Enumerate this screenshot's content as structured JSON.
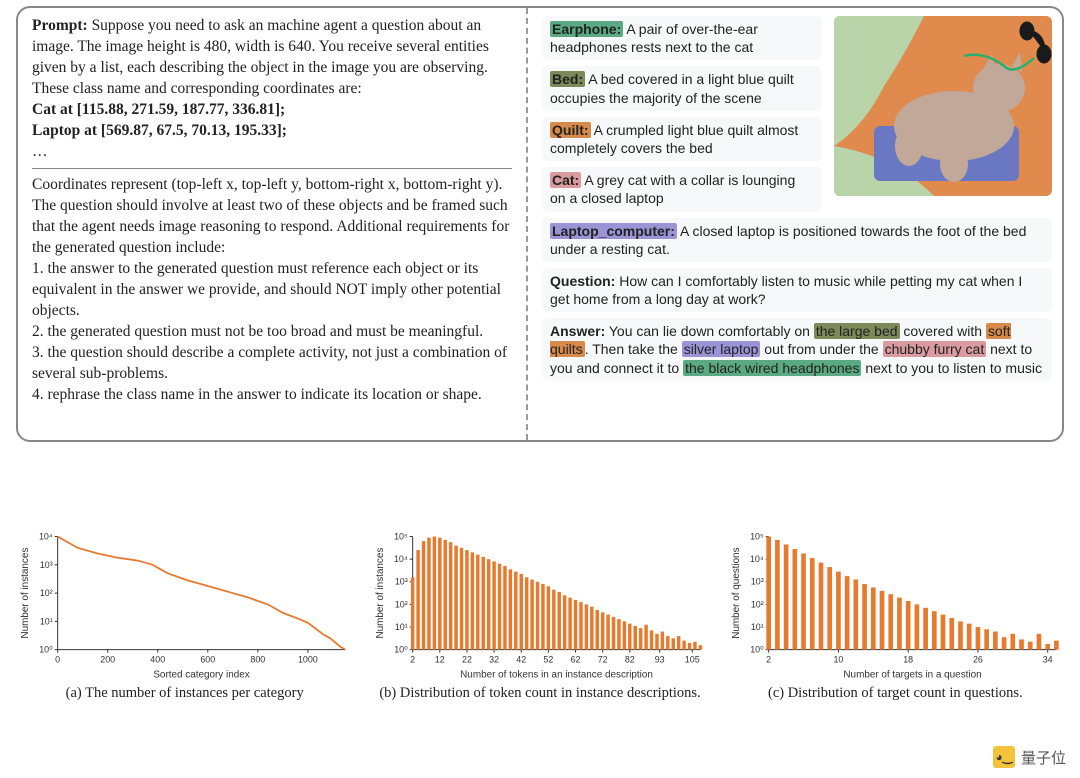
{
  "prompt": {
    "label": "Prompt:",
    "intro": "Suppose you need to ask an machine agent a question about an image. The image height is 480, width is 640. You receive several entities given by a list, each describing the object in the image you are observing. These class name and corresponding coordinates are:",
    "entity1": "Cat at [115.88, 271.59, 187.77, 336.81];",
    "entity2": "Laptop at [569.87, 67.5, 70.13, 195.33];",
    "ellipsis": "…",
    "coords_intro": "Coordinates represent (top-left x, top-left y, bottom-right x, bottom-right y). The question should involve at least two of these objects and be framed such that the agent needs image reasoning to respond. Additional requirements for",
    "reqs_lead": "the generated question include:",
    "req1": "1. the answer to the generated question must reference each object or its equivalent in the answer we provide, and should NOT imply other potential objects.",
    "req2": "2. the generated question must not be too broad and must be meaningful.",
    "req3": "3. the question should describe a complete activity, not just a combination of several sub-problems.",
    "req4": "4. rephrase the class name in the answer to indicate its location or shape."
  },
  "entities": {
    "earphone": {
      "tag": "Earphone:",
      "color": "#5aa982",
      "text": " A pair of over-the-ear headphones rests next to the cat"
    },
    "bed": {
      "tag": "Bed:",
      "color": "#7c8a5a",
      "text": " A bed covered in a light blue quilt occupies the majority of the scene"
    },
    "quilt": {
      "tag": "Quilt:",
      "color": "#d88a4a",
      "text": " A crumpled light blue quilt almost completely covers the bed"
    },
    "cat": {
      "tag": "Cat:",
      "color": "#d99aa0",
      "text": " A grey cat with a collar is lounging on a closed laptop"
    },
    "laptop": {
      "tag": "Laptop_computer:",
      "color": "#9a93d6",
      "text": " A closed laptop  is positioned towards the foot of the bed under a resting cat."
    }
  },
  "qa": {
    "q_label": "Question:",
    "q_text": " How can I comfortably listen to music while petting my cat when I get home from a long day at work?",
    "a_label": "Answer:",
    "a_pre": " You can lie down comfortably on ",
    "a_bed": "the large bed",
    "a_bed_color": "#7c8a5a",
    "a_mid1": " covered with ",
    "a_quilt": "soft quilts",
    "a_quilt_color": "#d88a4a",
    "a_mid2": ". Then take the ",
    "a_laptop": "silver laptop",
    "a_laptop_color": "#9a93d6",
    "a_mid3": "  out from under the ",
    "a_cat": "chubby furry cat",
    "a_cat_color": "#d99aa0",
    "a_mid4": "  next to you and connect it to ",
    "a_hp": "the black wired headphones",
    "a_hp_color": "#5aa982",
    "a_post": " next to you to listen to music"
  },
  "image_scene": {
    "bg_color": "#e08a4e",
    "quilt_color": "#b8d4a8",
    "laptop_color": "#6a78c4",
    "cat_color": "#c2a898",
    "headphone_color": "#1a1a1a",
    "cable_color": "#2ab06a"
  },
  "charts": {
    "stroke": "#e67a2e",
    "fill": "#e67a2e",
    "a": {
      "caption": "(a) The number of instances per category",
      "ylabel": "Number of instances",
      "xlabel": "Sorted category index",
      "xticks": [
        0,
        200,
        400,
        600,
        800,
        1000
      ],
      "yticks": [
        "10⁰",
        "10¹",
        "10²",
        "10³",
        "10⁴"
      ],
      "xlim": [
        0,
        1150
      ],
      "ylim_log": [
        0,
        4
      ],
      "points": [
        [
          0,
          4.0
        ],
        [
          80,
          3.6
        ],
        [
          160,
          3.4
        ],
        [
          240,
          3.25
        ],
        [
          320,
          3.15
        ],
        [
          380,
          3.0
        ],
        [
          440,
          2.7
        ],
        [
          520,
          2.45
        ],
        [
          600,
          2.25
        ],
        [
          680,
          2.05
        ],
        [
          760,
          1.85
        ],
        [
          840,
          1.6
        ],
        [
          900,
          1.3
        ],
        [
          960,
          1.1
        ],
        [
          1000,
          0.95
        ],
        [
          1060,
          0.55
        ],
        [
          1090,
          0.4
        ],
        [
          1110,
          0.25
        ],
        [
          1130,
          0.1
        ],
        [
          1150,
          0.0
        ]
      ]
    },
    "b": {
      "caption": "(b) Distribution of token count in instance descriptions.",
      "ylabel": "Number of instances",
      "xlabel": "Number of tokens in an instance description",
      "xticks": [
        2,
        12,
        22,
        32,
        42,
        52,
        62,
        72,
        82,
        93,
        105
      ],
      "yticks": [
        "10⁰",
        "10¹",
        "10²",
        "10³",
        "10⁴",
        "10⁵"
      ],
      "ylim_log": [
        0,
        5
      ],
      "bars": [
        [
          2,
          3.2
        ],
        [
          4,
          4.4
        ],
        [
          6,
          4.8
        ],
        [
          8,
          4.95
        ],
        [
          10,
          5.0
        ],
        [
          12,
          4.95
        ],
        [
          14,
          4.85
        ],
        [
          16,
          4.75
        ],
        [
          18,
          4.6
        ],
        [
          20,
          4.5
        ],
        [
          22,
          4.4
        ],
        [
          24,
          4.3
        ],
        [
          26,
          4.2
        ],
        [
          28,
          4.1
        ],
        [
          30,
          4.0
        ],
        [
          32,
          3.9
        ],
        [
          34,
          3.8
        ],
        [
          36,
          3.7
        ],
        [
          38,
          3.55
        ],
        [
          40,
          3.45
        ],
        [
          42,
          3.35
        ],
        [
          44,
          3.2
        ],
        [
          46,
          3.1
        ],
        [
          48,
          3.0
        ],
        [
          50,
          2.9
        ],
        [
          52,
          2.8
        ],
        [
          54,
          2.65
        ],
        [
          56,
          2.55
        ],
        [
          58,
          2.4
        ],
        [
          60,
          2.3
        ],
        [
          62,
          2.2
        ],
        [
          64,
          2.1
        ],
        [
          66,
          2.0
        ],
        [
          68,
          1.9
        ],
        [
          70,
          1.75
        ],
        [
          72,
          1.65
        ],
        [
          74,
          1.55
        ],
        [
          76,
          1.45
        ],
        [
          78,
          1.35
        ],
        [
          80,
          1.25
        ],
        [
          82,
          1.15
        ],
        [
          84,
          1.05
        ],
        [
          86,
          0.95
        ],
        [
          88,
          1.1
        ],
        [
          90,
          0.85
        ],
        [
          92,
          0.7
        ],
        [
          94,
          0.8
        ],
        [
          96,
          0.6
        ],
        [
          98,
          0.5
        ],
        [
          100,
          0.6
        ],
        [
          102,
          0.4
        ],
        [
          104,
          0.3
        ],
        [
          106,
          0.35
        ],
        [
          108,
          0.2
        ]
      ]
    },
    "c": {
      "caption": "(c)  Distribution of target count in questions.",
      "ylabel": "Number of questions",
      "xlabel": "Number of targets in a question",
      "xticks": [
        2,
        10,
        18,
        26,
        34
      ],
      "yticks": [
        "10⁰",
        "10¹",
        "10²",
        "10³",
        "10⁴",
        "10⁵"
      ],
      "ylim_log": [
        0,
        5
      ],
      "bars": [
        [
          2,
          5.0
        ],
        [
          3,
          4.85
        ],
        [
          4,
          4.65
        ],
        [
          5,
          4.45
        ],
        [
          6,
          4.25
        ],
        [
          7,
          4.05
        ],
        [
          8,
          3.85
        ],
        [
          9,
          3.65
        ],
        [
          10,
          3.45
        ],
        [
          11,
          3.25
        ],
        [
          12,
          3.1
        ],
        [
          13,
          2.9
        ],
        [
          14,
          2.75
        ],
        [
          15,
          2.6
        ],
        [
          16,
          2.45
        ],
        [
          17,
          2.3
        ],
        [
          18,
          2.15
        ],
        [
          19,
          2.0
        ],
        [
          20,
          1.85
        ],
        [
          21,
          1.7
        ],
        [
          22,
          1.55
        ],
        [
          23,
          1.4
        ],
        [
          24,
          1.25
        ],
        [
          25,
          1.15
        ],
        [
          26,
          1.0
        ],
        [
          27,
          0.9
        ],
        [
          28,
          0.8
        ],
        [
          29,
          0.55
        ],
        [
          30,
          0.7
        ],
        [
          31,
          0.45
        ],
        [
          32,
          0.35
        ],
        [
          33,
          0.7
        ],
        [
          34,
          0.25
        ],
        [
          35,
          0.4
        ]
      ]
    }
  },
  "watermark": "量子位"
}
